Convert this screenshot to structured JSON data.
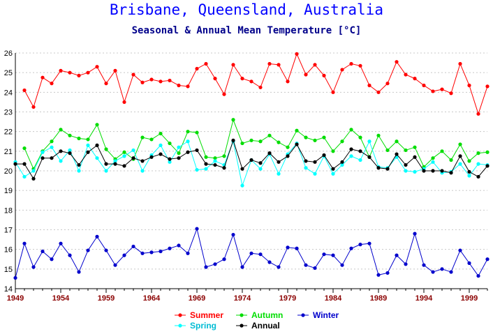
{
  "chart_data": {
    "type": "line",
    "title": "Brisbane, Queensland, Australia",
    "subtitle": "Seasonal & Annual Mean Temperature [°C]",
    "xlabel": "",
    "ylabel": "",
    "xlim": [
      1949,
      2001
    ],
    "ylim": [
      14,
      26
    ],
    "y_ticks": [
      14,
      15,
      16,
      17,
      18,
      19,
      20,
      21,
      22,
      23,
      24,
      25,
      26
    ],
    "x_ticks": [
      1949,
      1954,
      1959,
      1964,
      1969,
      1974,
      1979,
      1984,
      1989,
      1994,
      1999
    ],
    "grid": "horizontal dotted",
    "legend_position": "bottom-center",
    "x": [
      1949,
      1950,
      1951,
      1952,
      1953,
      1954,
      1955,
      1956,
      1957,
      1958,
      1959,
      1960,
      1961,
      1962,
      1963,
      1964,
      1965,
      1966,
      1967,
      1968,
      1969,
      1970,
      1971,
      1972,
      1973,
      1974,
      1975,
      1976,
      1977,
      1978,
      1979,
      1980,
      1981,
      1982,
      1983,
      1984,
      1985,
      1986,
      1987,
      1988,
      1989,
      1990,
      1991,
      1992,
      1993,
      1994,
      1995,
      1996,
      1997,
      1998,
      1999,
      2000,
      2001
    ],
    "series": [
      {
        "name": "Summer",
        "color": "#ff0000",
        "values": [
          null,
          24.1,
          23.25,
          24.75,
          24.45,
          25.1,
          25.0,
          24.85,
          25.0,
          25.3,
          24.45,
          25.1,
          23.5,
          24.9,
          24.5,
          24.65,
          24.55,
          24.6,
          24.35,
          24.3,
          25.2,
          25.45,
          24.7,
          23.9,
          25.4,
          24.7,
          24.55,
          24.25,
          25.45,
          25.4,
          24.55,
          25.95,
          24.9,
          25.4,
          24.85,
          24.0,
          25.15,
          25.45,
          25.35,
          24.35,
          24.0,
          24.45,
          25.55,
          24.9,
          24.7,
          24.35,
          24.05,
          24.15,
          23.95,
          25.45,
          24.35,
          22.9,
          24.3
        ]
      },
      {
        "name": "Autumn",
        "color": "#00dd00",
        "values": [
          null,
          21.15,
          20.1,
          21.0,
          21.5,
          22.1,
          21.8,
          21.65,
          21.6,
          22.35,
          21.1,
          20.6,
          20.95,
          20.6,
          21.7,
          21.6,
          21.9,
          21.4,
          20.9,
          22.0,
          21.95,
          20.7,
          20.65,
          20.75,
          22.6,
          21.4,
          21.55,
          21.5,
          21.8,
          21.45,
          21.2,
          22.05,
          21.7,
          21.55,
          21.7,
          21.0,
          21.5,
          22.1,
          21.7,
          20.7,
          21.8,
          21.05,
          21.5,
          21.05,
          21.2,
          20.2,
          20.65,
          21.0,
          20.55,
          21.35,
          20.5,
          20.9,
          20.95
        ]
      },
      {
        "name": "Winter",
        "color": "#0000cc",
        "values": [
          14.55,
          16.3,
          15.1,
          15.9,
          15.5,
          16.3,
          15.7,
          14.85,
          15.95,
          16.65,
          15.95,
          15.2,
          15.7,
          16.15,
          15.8,
          15.85,
          15.9,
          16.05,
          16.2,
          15.8,
          17.05,
          15.1,
          15.25,
          15.5,
          16.75,
          15.1,
          15.8,
          15.75,
          15.35,
          15.1,
          16.1,
          16.05,
          15.2,
          15.05,
          15.75,
          15.7,
          15.2,
          16.05,
          16.25,
          16.3,
          14.7,
          14.8,
          15.7,
          15.25,
          16.8,
          15.2,
          14.85,
          15.0,
          14.85,
          15.95,
          15.3,
          14.65,
          15.5
        ]
      },
      {
        "name": "Spring",
        "color": "#00ffff",
        "values": [
          20.45,
          19.7,
          20.0,
          20.95,
          21.2,
          20.5,
          21.05,
          20.0,
          21.3,
          20.65,
          20.0,
          20.5,
          20.75,
          21.05,
          20.0,
          20.8,
          21.3,
          20.45,
          21.2,
          21.5,
          20.05,
          20.1,
          20.5,
          20.3,
          21.5,
          19.25,
          20.55,
          20.1,
          20.85,
          19.85,
          20.85,
          21.4,
          20.15,
          19.85,
          20.75,
          19.85,
          20.3,
          20.75,
          20.55,
          21.5,
          20.2,
          20.15,
          20.7,
          20.0,
          19.95,
          20.1,
          20.45,
          19.9,
          19.95,
          20.35,
          19.75,
          20.35,
          20.3
        ]
      },
      {
        "name": "Annual",
        "color": "#000000",
        "values": [
          20.35,
          20.35,
          19.6,
          20.65,
          20.65,
          21.0,
          20.9,
          20.3,
          20.95,
          21.3,
          20.35,
          20.35,
          20.25,
          20.65,
          20.5,
          20.7,
          20.85,
          20.6,
          20.65,
          20.95,
          21.05,
          20.35,
          20.3,
          20.15,
          21.55,
          20.1,
          20.55,
          20.4,
          20.9,
          20.45,
          20.75,
          21.35,
          20.5,
          20.45,
          20.8,
          20.1,
          20.45,
          21.1,
          21.0,
          20.7,
          20.15,
          20.1,
          20.85,
          20.3,
          20.7,
          20.0,
          20.0,
          20.0,
          19.9,
          20.75,
          19.95,
          19.7,
          20.25
        ]
      }
    ]
  }
}
